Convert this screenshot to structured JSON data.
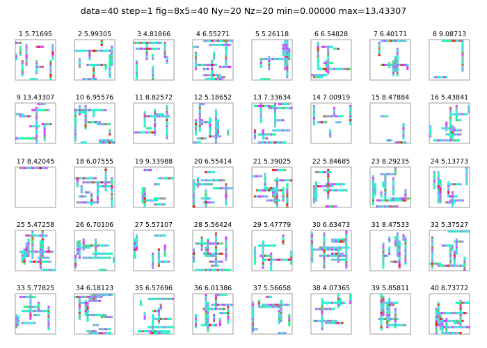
{
  "figure": {
    "title": "data=40 step=1 fig=8x5=40 Ny=20 Nz=20 min=0.00000 max=13.43307"
  },
  "chart_data": {
    "type": "heatmap",
    "layout": {
      "rows": 5,
      "cols": 8
    },
    "grid": {
      "ny": 20,
      "nz": 20
    },
    "value_range": [
      0.0,
      13.43307
    ],
    "colormap": "rainbow",
    "panels": [
      {
        "title": "1 5.71695",
        "max": 5.71695
      },
      {
        "title": "2 5.99305",
        "max": 5.99305
      },
      {
        "title": "3 4.81866",
        "max": 4.81866
      },
      {
        "title": "4 6.55271",
        "max": 6.55271
      },
      {
        "title": "5 5.26118",
        "max": 5.26118
      },
      {
        "title": "6 6.54828",
        "max": 6.54828
      },
      {
        "title": "7 6.40171",
        "max": 6.40171
      },
      {
        "title": "8 9.08713",
        "max": 9.08713
      },
      {
        "title": "9 13.43307",
        "max": 13.43307
      },
      {
        "title": "10 6.95576",
        "max": 6.95576
      },
      {
        "title": "11 8.82572",
        "max": 8.82572
      },
      {
        "title": "12 5.18652",
        "max": 5.18652
      },
      {
        "title": "13 7.33634",
        "max": 7.33634
      },
      {
        "title": "14 7.00919",
        "max": 7.00919
      },
      {
        "title": "15 8.47884",
        "max": 8.47884
      },
      {
        "title": "16 5.43841",
        "max": 5.43841
      },
      {
        "title": "17 8.42045",
        "max": 8.42045
      },
      {
        "title": "18 6.07555",
        "max": 6.07555
      },
      {
        "title": "19 9.33988",
        "max": 9.33988
      },
      {
        "title": "20 6.55414",
        "max": 6.55414
      },
      {
        "title": "21 5.39025",
        "max": 5.39025
      },
      {
        "title": "22 5.84685",
        "max": 5.84685
      },
      {
        "title": "23 8.29235",
        "max": 8.29235
      },
      {
        "title": "24 5.13773",
        "max": 5.13773
      },
      {
        "title": "25 5.47258",
        "max": 5.47258
      },
      {
        "title": "26 6.70106",
        "max": 6.70106
      },
      {
        "title": "27 5.57107",
        "max": 5.57107
      },
      {
        "title": "28 5.56424",
        "max": 5.56424
      },
      {
        "title": "29 5.47779",
        "max": 5.47779
      },
      {
        "title": "30 6.63473",
        "max": 6.63473
      },
      {
        "title": "31 8.47533",
        "max": 8.47533
      },
      {
        "title": "32 5.37527",
        "max": 5.37527
      },
      {
        "title": "33 5.77825",
        "max": 5.77825
      },
      {
        "title": "34 6.18123",
        "max": 6.18123
      },
      {
        "title": "35 6.57696",
        "max": 6.57696
      },
      {
        "title": "36 6.01386",
        "max": 6.01386
      },
      {
        "title": "37 5.56658",
        "max": 5.56658
      },
      {
        "title": "38 4.07365",
        "max": 4.07365
      },
      {
        "title": "39 5.85811",
        "max": 5.85811
      },
      {
        "title": "40 8.73772",
        "max": 8.73772
      }
    ]
  }
}
